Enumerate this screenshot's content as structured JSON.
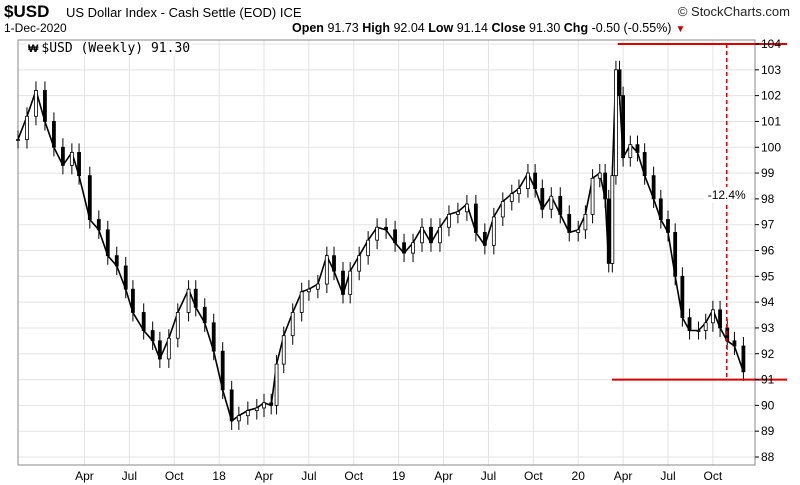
{
  "header": {
    "symbol": "$USD",
    "title": "US Dollar Index - Cash Settle (EOD) ICE",
    "brand": "© StockCharts.com",
    "date": "1-Dec-2020",
    "open_label": "Open",
    "open_value": "91.73",
    "high_label": "High",
    "high_value": "92.04",
    "low_label": "Low",
    "low_value": "91.14",
    "close_label": "Close",
    "close_value": "91.30",
    "chg_label": "Chg",
    "chg_value": "-0.50 (-0.55%)",
    "chg_color": "#cc0000"
  },
  "legend": {
    "icon": "candlestick-icon",
    "text": "$USD (Weekly) 91.30"
  },
  "chart_data": {
    "type": "candlestick",
    "title": "$USD (Weekly) 91.30",
    "xlabel": "",
    "ylabel": "",
    "ylim": [
      88,
      104
    ],
    "yticks": [
      88,
      89,
      90,
      91,
      92,
      93,
      94,
      95,
      96,
      97,
      98,
      99,
      100,
      101,
      102,
      103,
      104
    ],
    "y_axis_side": "right",
    "xlim": [
      2016.88,
      2020.94
    ],
    "xticks": [
      {
        "label": "Apr",
        "x": 2017.25
      },
      {
        "label": "Jul",
        "x": 2017.5
      },
      {
        "label": "Oct",
        "x": 2017.75
      },
      {
        "label": "18",
        "x": 2018.0
      },
      {
        "label": "Apr",
        "x": 2018.25
      },
      {
        "label": "Jul",
        "x": 2018.5
      },
      {
        "label": "Oct",
        "x": 2018.75
      },
      {
        "label": "19",
        "x": 2019.0
      },
      {
        "label": "Apr",
        "x": 2019.25
      },
      {
        "label": "Jul",
        "x": 2019.5
      },
      {
        "label": "Oct",
        "x": 2019.75
      },
      {
        "label": "20",
        "x": 2020.0
      },
      {
        "label": "Apr",
        "x": 2020.25
      },
      {
        "label": "Jul",
        "x": 2020.5
      },
      {
        "label": "Oct",
        "x": 2020.75
      }
    ],
    "grid": true,
    "line_color": "#000000",
    "annotation_color": "#dd0000",
    "path": [
      [
        2016.88,
        100.3
      ],
      [
        2016.93,
        101.2
      ],
      [
        2016.98,
        102.2
      ],
      [
        2017.03,
        101.0
      ],
      [
        2017.08,
        100.0
      ],
      [
        2017.13,
        99.3
      ],
      [
        2017.18,
        99.8
      ],
      [
        2017.22,
        98.9
      ],
      [
        2017.28,
        97.2
      ],
      [
        2017.33,
        96.8
      ],
      [
        2017.38,
        95.8
      ],
      [
        2017.43,
        95.4
      ],
      [
        2017.48,
        94.5
      ],
      [
        2017.52,
        93.6
      ],
      [
        2017.58,
        92.9
      ],
      [
        2017.63,
        92.5
      ],
      [
        2017.67,
        91.8
      ],
      [
        2017.72,
        92.6
      ],
      [
        2017.77,
        93.6
      ],
      [
        2017.83,
        94.5
      ],
      [
        2017.87,
        93.8
      ],
      [
        2017.92,
        93.2
      ],
      [
        2017.97,
        92.1
      ],
      [
        2018.02,
        90.6
      ],
      [
        2018.07,
        89.4
      ],
      [
        2018.11,
        89.6
      ],
      [
        2018.16,
        89.8
      ],
      [
        2018.21,
        89.9
      ],
      [
        2018.25,
        90.1
      ],
      [
        2018.29,
        90.0
      ],
      [
        2018.32,
        91.6
      ],
      [
        2018.36,
        92.7
      ],
      [
        2018.41,
        93.6
      ],
      [
        2018.46,
        94.4
      ],
      [
        2018.5,
        94.5
      ],
      [
        2018.55,
        94.7
      ],
      [
        2018.6,
        95.8
      ],
      [
        2018.64,
        95.2
      ],
      [
        2018.69,
        94.3
      ],
      [
        2018.73,
        95.2
      ],
      [
        2018.78,
        95.8
      ],
      [
        2018.83,
        96.4
      ],
      [
        2018.88,
        96.9
      ],
      [
        2018.93,
        96.8
      ],
      [
        2018.98,
        96.3
      ],
      [
        2019.03,
        95.9
      ],
      [
        2019.08,
        96.3
      ],
      [
        2019.13,
        96.9
      ],
      [
        2019.18,
        96.3
      ],
      [
        2019.23,
        96.9
      ],
      [
        2019.28,
        97.4
      ],
      [
        2019.33,
        97.5
      ],
      [
        2019.38,
        97.8
      ],
      [
        2019.43,
        96.7
      ],
      [
        2019.48,
        96.2
      ],
      [
        2019.53,
        97.3
      ],
      [
        2019.58,
        97.9
      ],
      [
        2019.63,
        98.2
      ],
      [
        2019.67,
        98.4
      ],
      [
        2019.72,
        99.0
      ],
      [
        2019.76,
        98.4
      ],
      [
        2019.8,
        97.6
      ],
      [
        2019.85,
        98.1
      ],
      [
        2019.9,
        97.4
      ],
      [
        2019.95,
        96.7
      ],
      [
        2020.0,
        96.8
      ],
      [
        2020.04,
        97.4
      ],
      [
        2020.08,
        98.8
      ],
      [
        2020.12,
        99.0
      ],
      [
        2020.15,
        98.0
      ],
      [
        2020.17,
        95.5
      ],
      [
        2020.19,
        98.9
      ],
      [
        2020.21,
        103.0
      ],
      [
        2020.23,
        102.0
      ],
      [
        2020.25,
        99.6
      ],
      [
        2020.29,
        100.1
      ],
      [
        2020.33,
        99.8
      ],
      [
        2020.37,
        98.9
      ],
      [
        2020.42,
        98.0
      ],
      [
        2020.46,
        97.2
      ],
      [
        2020.5,
        96.7
      ],
      [
        2020.54,
        95.0
      ],
      [
        2020.58,
        93.4
      ],
      [
        2020.62,
        92.9
      ],
      [
        2020.67,
        92.9
      ],
      [
        2020.71,
        93.2
      ],
      [
        2020.75,
        93.7
      ],
      [
        2020.79,
        93.0
      ],
      [
        2020.83,
        92.5
      ],
      [
        2020.87,
        92.3
      ],
      [
        2020.92,
        91.3
      ]
    ],
    "annotations": {
      "high_line": 104.0,
      "low_line": 91.0,
      "line_start_x": 2020.22,
      "measure_x": 2020.66,
      "measure_label": "-12.4%"
    }
  }
}
